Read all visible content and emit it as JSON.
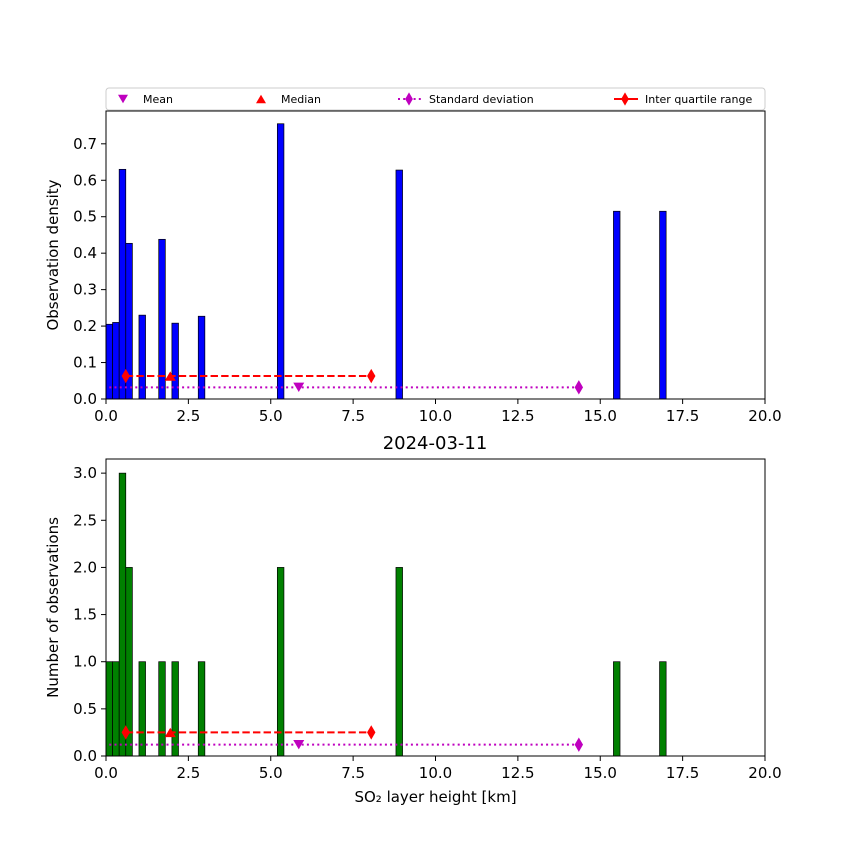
{
  "figure": {
    "title": "2024-03-11",
    "legend": {
      "placement": "top, above upper panel",
      "items": [
        {
          "label": "Mean",
          "marker": "triangle-down",
          "color": "#bf00bf",
          "line": "none"
        },
        {
          "label": "Median",
          "marker": "triangle-up",
          "color": "#ff0000",
          "line": "none"
        },
        {
          "label": "Standard deviation",
          "marker": "diamond",
          "color": "#bf00bf",
          "line": "dotted"
        },
        {
          "label": "Inter quartile range",
          "marker": "diamond",
          "color": "#ff0000",
          "line": "dashed"
        }
      ]
    }
  },
  "chart_data": [
    {
      "type": "bar",
      "panel": "top",
      "ylabel": "Observation density",
      "xlabel": "",
      "xlim": [
        0,
        20
      ],
      "ylim": [
        0,
        0.79
      ],
      "xticks": [
        "0.0",
        "2.5",
        "5.0",
        "7.5",
        "10.0",
        "12.5",
        "15.0",
        "17.5",
        "20.0"
      ],
      "yticks": [
        "0.0",
        "0.1",
        "0.2",
        "0.3",
        "0.4",
        "0.5",
        "0.6",
        "0.7"
      ],
      "bar_color": "#0000ff",
      "bins": [
        {
          "x0": 0.0,
          "x1": 0.2,
          "value": 0.205
        },
        {
          "x0": 0.2,
          "x1": 0.4,
          "value": 0.21
        },
        {
          "x0": 0.4,
          "x1": 0.6,
          "value": 0.63
        },
        {
          "x0": 0.6,
          "x1": 0.8,
          "value": 0.427
        },
        {
          "x0": 1.0,
          "x1": 1.2,
          "value": 0.23
        },
        {
          "x0": 1.6,
          "x1": 1.8,
          "value": 0.438
        },
        {
          "x0": 2.0,
          "x1": 2.2,
          "value": 0.208
        },
        {
          "x0": 2.8,
          "x1": 3.0,
          "value": 0.227
        },
        {
          "x0": 5.2,
          "x1": 5.4,
          "value": 0.755
        },
        {
          "x0": 8.8,
          "x1": 9.0,
          "value": 0.628
        },
        {
          "x0": 15.4,
          "x1": 15.6,
          "value": 0.515
        },
        {
          "x0": 16.8,
          "x1": 17.0,
          "value": 0.515
        }
      ],
      "stats": {
        "mean": {
          "x": 5.85,
          "y": 0.032
        },
        "median": {
          "x": 1.95,
          "y": 0.063
        },
        "std_range": {
          "x0": 0.1,
          "x1": 14.35,
          "y": 0.032
        },
        "iqr_range": {
          "x0": 0.6,
          "x1": 8.05,
          "y": 0.063
        }
      }
    },
    {
      "type": "bar",
      "panel": "bottom",
      "ylabel": "Number of observations",
      "xlabel": "SO₂ layer height [km]",
      "xlim": [
        0,
        20
      ],
      "ylim": [
        0,
        3.15
      ],
      "xticks": [
        "0.0",
        "2.5",
        "5.0",
        "7.5",
        "10.0",
        "12.5",
        "15.0",
        "17.5",
        "20.0"
      ],
      "yticks": [
        "0.0",
        "0.5",
        "1.0",
        "1.5",
        "2.0",
        "2.5",
        "3.0"
      ],
      "bar_color": "#008000",
      "bins": [
        {
          "x0": 0.0,
          "x1": 0.2,
          "value": 1
        },
        {
          "x0": 0.2,
          "x1": 0.4,
          "value": 1
        },
        {
          "x0": 0.4,
          "x1": 0.6,
          "value": 3
        },
        {
          "x0": 0.6,
          "x1": 0.8,
          "value": 2
        },
        {
          "x0": 1.0,
          "x1": 1.2,
          "value": 1
        },
        {
          "x0": 1.6,
          "x1": 1.8,
          "value": 1
        },
        {
          "x0": 2.0,
          "x1": 2.2,
          "value": 1
        },
        {
          "x0": 2.8,
          "x1": 3.0,
          "value": 1
        },
        {
          "x0": 5.2,
          "x1": 5.4,
          "value": 2
        },
        {
          "x0": 8.8,
          "x1": 9.0,
          "value": 2
        },
        {
          "x0": 15.4,
          "x1": 15.6,
          "value": 1
        },
        {
          "x0": 16.8,
          "x1": 17.0,
          "value": 1
        }
      ],
      "stats": {
        "mean": {
          "x": 5.85,
          "y": 0.12
        },
        "median": {
          "x": 1.95,
          "y": 0.25
        },
        "std_range": {
          "x0": 0.1,
          "x1": 14.35,
          "y": 0.12
        },
        "iqr_range": {
          "x0": 0.6,
          "x1": 8.05,
          "y": 0.25
        }
      }
    }
  ]
}
